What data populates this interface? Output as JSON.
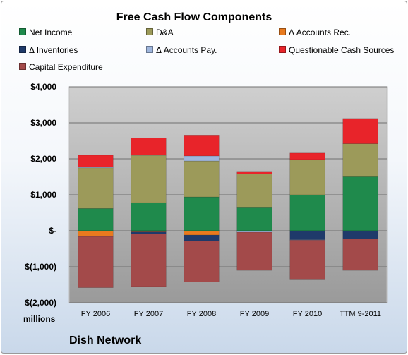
{
  "chart_data": {
    "type": "stacked-bar",
    "title": "Free Cash Flow Components",
    "categories": [
      "FY 2006",
      "FY 2007",
      "FY 2008",
      "FY 2009",
      "FY 2010",
      "TTM 9-2011"
    ],
    "y_tick_labels": [
      "$(2,000)",
      "$(1,000)",
      "$-",
      "$1,000",
      "$2,000",
      "$3,000",
      "$4,000"
    ],
    "y_ticks": [
      -2000,
      -1000,
      0,
      1000,
      2000,
      3000,
      4000
    ],
    "ylim": [
      -2000,
      4000
    ],
    "units": "millions",
    "grid": true,
    "legend_position": "top",
    "series": [
      {
        "name": "Net Income",
        "color": "#1f8a4c",
        "values": [
          620,
          780,
          940,
          640,
          1000,
          1500
        ]
      },
      {
        "name": "D&A",
        "color": "#9c9a5a",
        "values": [
          1130,
          1320,
          1000,
          940,
          980,
          920
        ]
      },
      {
        "name": "Δ Accounts Rec.",
        "color": "#e87a1e",
        "values": [
          -160,
          -30,
          -120,
          0,
          0,
          0
        ]
      },
      {
        "name": "Δ Inventories",
        "color": "#1f3a6a",
        "values": [
          0,
          -60,
          -160,
          0,
          -250,
          -230
        ]
      },
      {
        "name": "Δ Accounts Pay.",
        "color": "#9fb6dd",
        "values": [
          20,
          10,
          140,
          -40,
          -10,
          0
        ]
      },
      {
        "name": "Questionable Cash Sources",
        "color": "#e8242a",
        "values": [
          330,
          470,
          580,
          70,
          180,
          700
        ]
      },
      {
        "name": "Capital Expenditure",
        "color": "#a34a4a",
        "values": [
          -1420,
          -1460,
          -1140,
          -1060,
          -1100,
          -870
        ]
      }
    ]
  },
  "footer": {
    "company": "Dish Network"
  }
}
